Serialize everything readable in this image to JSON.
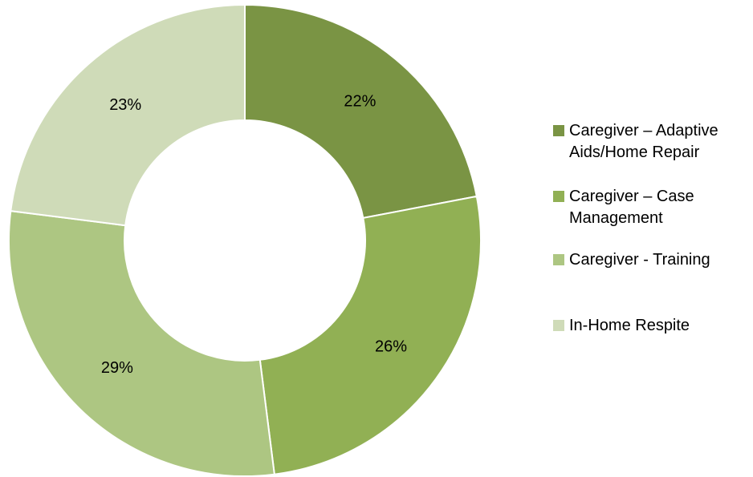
{
  "chart_data": {
    "type": "pie",
    "variant": "donut",
    "slices": [
      {
        "label": "Caregiver – Adaptive Aids/Home Repair",
        "value": 22,
        "display": "22%",
        "color": "#7a9444"
      },
      {
        "label": "Caregiver – Case Management",
        "value": 26,
        "display": "26%",
        "color": "#91b054"
      },
      {
        "label": "Caregiver - Training",
        "value": 29,
        "display": "29%",
        "color": "#adc682"
      },
      {
        "label": "In-Home Respite",
        "value": 23,
        "display": "23%",
        "color": "#cfdbb8"
      }
    ],
    "legend_position": "right",
    "start_angle_deg": 0,
    "direction": "clockwise"
  },
  "legend": {
    "items": [
      {
        "label": "Caregiver – Adaptive Aids/Home Repair",
        "color": "#7a9444"
      },
      {
        "label": "Caregiver – Case Management",
        "color": "#91b054"
      },
      {
        "label": "Caregiver - Training",
        "color": "#adc682"
      },
      {
        "label": "In-Home Respite",
        "color": "#cfdbb8"
      }
    ]
  }
}
